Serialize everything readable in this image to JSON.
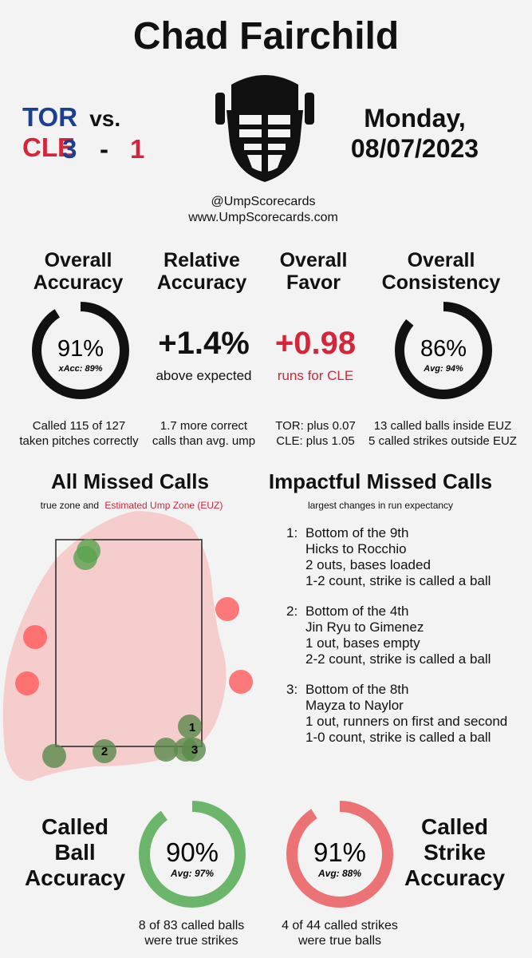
{
  "title": "Chad Fairchild",
  "game": {
    "away_team": "TOR",
    "vs": "vs.",
    "home_team": "CLE",
    "away_score": "3",
    "dash": "-",
    "home_score": "1",
    "day": "Monday,",
    "date": "08/07/2023",
    "away_color": "#1c3f8f",
    "home_color": "#d6243a"
  },
  "handles": {
    "twitter": "@UmpScorecards",
    "website": "www.UmpScorecards.com"
  },
  "stats": {
    "overall_accuracy": {
      "head1": "Overall",
      "head2": "Accuracy",
      "value": "91%",
      "sub": "xAcc: 89%",
      "fraction": 0.91,
      "note1": "Called 115 of 127",
      "note2": "taken pitches correctly"
    },
    "relative_accuracy": {
      "head1": "Relative",
      "head2": "Accuracy",
      "value": "+1.4%",
      "sub": "above expected",
      "note1": "1.7 more correct",
      "note2": "calls than avg. ump"
    },
    "overall_favor": {
      "head1": "Overall",
      "head2": "Favor",
      "value": "+0.98",
      "sub": "runs for CLE",
      "note1": "TOR: plus 0.07",
      "note2": "CLE: plus 1.05"
    },
    "overall_consistency": {
      "head1": "Overall",
      "head2": "Consistency",
      "value": "86%",
      "sub": "Avg: 94%",
      "fraction": 0.86,
      "note1": "13 called balls inside EUZ",
      "note2": "5 called strikes outside EUZ"
    }
  },
  "missed_calls": {
    "title": "All Missed Calls",
    "legend_true": "true zone and",
    "legend_euz": "Estimated Ump Zone (EUZ)",
    "ball_labels": [
      "1",
      "2",
      "3"
    ]
  },
  "impactful": {
    "title": "Impactful Missed Calls",
    "subtitle": "largest changes in run expectancy",
    "items": [
      {
        "num": "1:",
        "lines": [
          "Bottom of the 9th",
          "Hicks to Rocchio",
          "2 outs, bases loaded",
          "1-2 count, strike is called a ball"
        ]
      },
      {
        "num": "2:",
        "lines": [
          "Bottom of the 4th",
          "Jin Ryu to Gimenez",
          "1 out, bases empty",
          "2-2 count, strike is called a ball"
        ]
      },
      {
        "num": "3:",
        "lines": [
          "Bottom of the 8th",
          "Mayza to Naylor",
          "1 out, runners on first and second",
          "1-0 count, strike is called a ball"
        ]
      }
    ]
  },
  "called_ball": {
    "head1": "Called",
    "head2": "Ball",
    "head3": "Accuracy",
    "value": "90%",
    "sub": "Avg: 97%",
    "fraction": 0.9,
    "note1": "8 of 83 called balls",
    "note2": "were true strikes",
    "color": "#6cb66c"
  },
  "called_strike": {
    "head1": "Called",
    "head2": "Strike",
    "head3": "Accuracy",
    "value": "91%",
    "sub": "Avg: 88%",
    "fraction": 0.91,
    "note1": "4 of 44 called strikes",
    "note2": "were true balls",
    "color": "#ec7375"
  }
}
